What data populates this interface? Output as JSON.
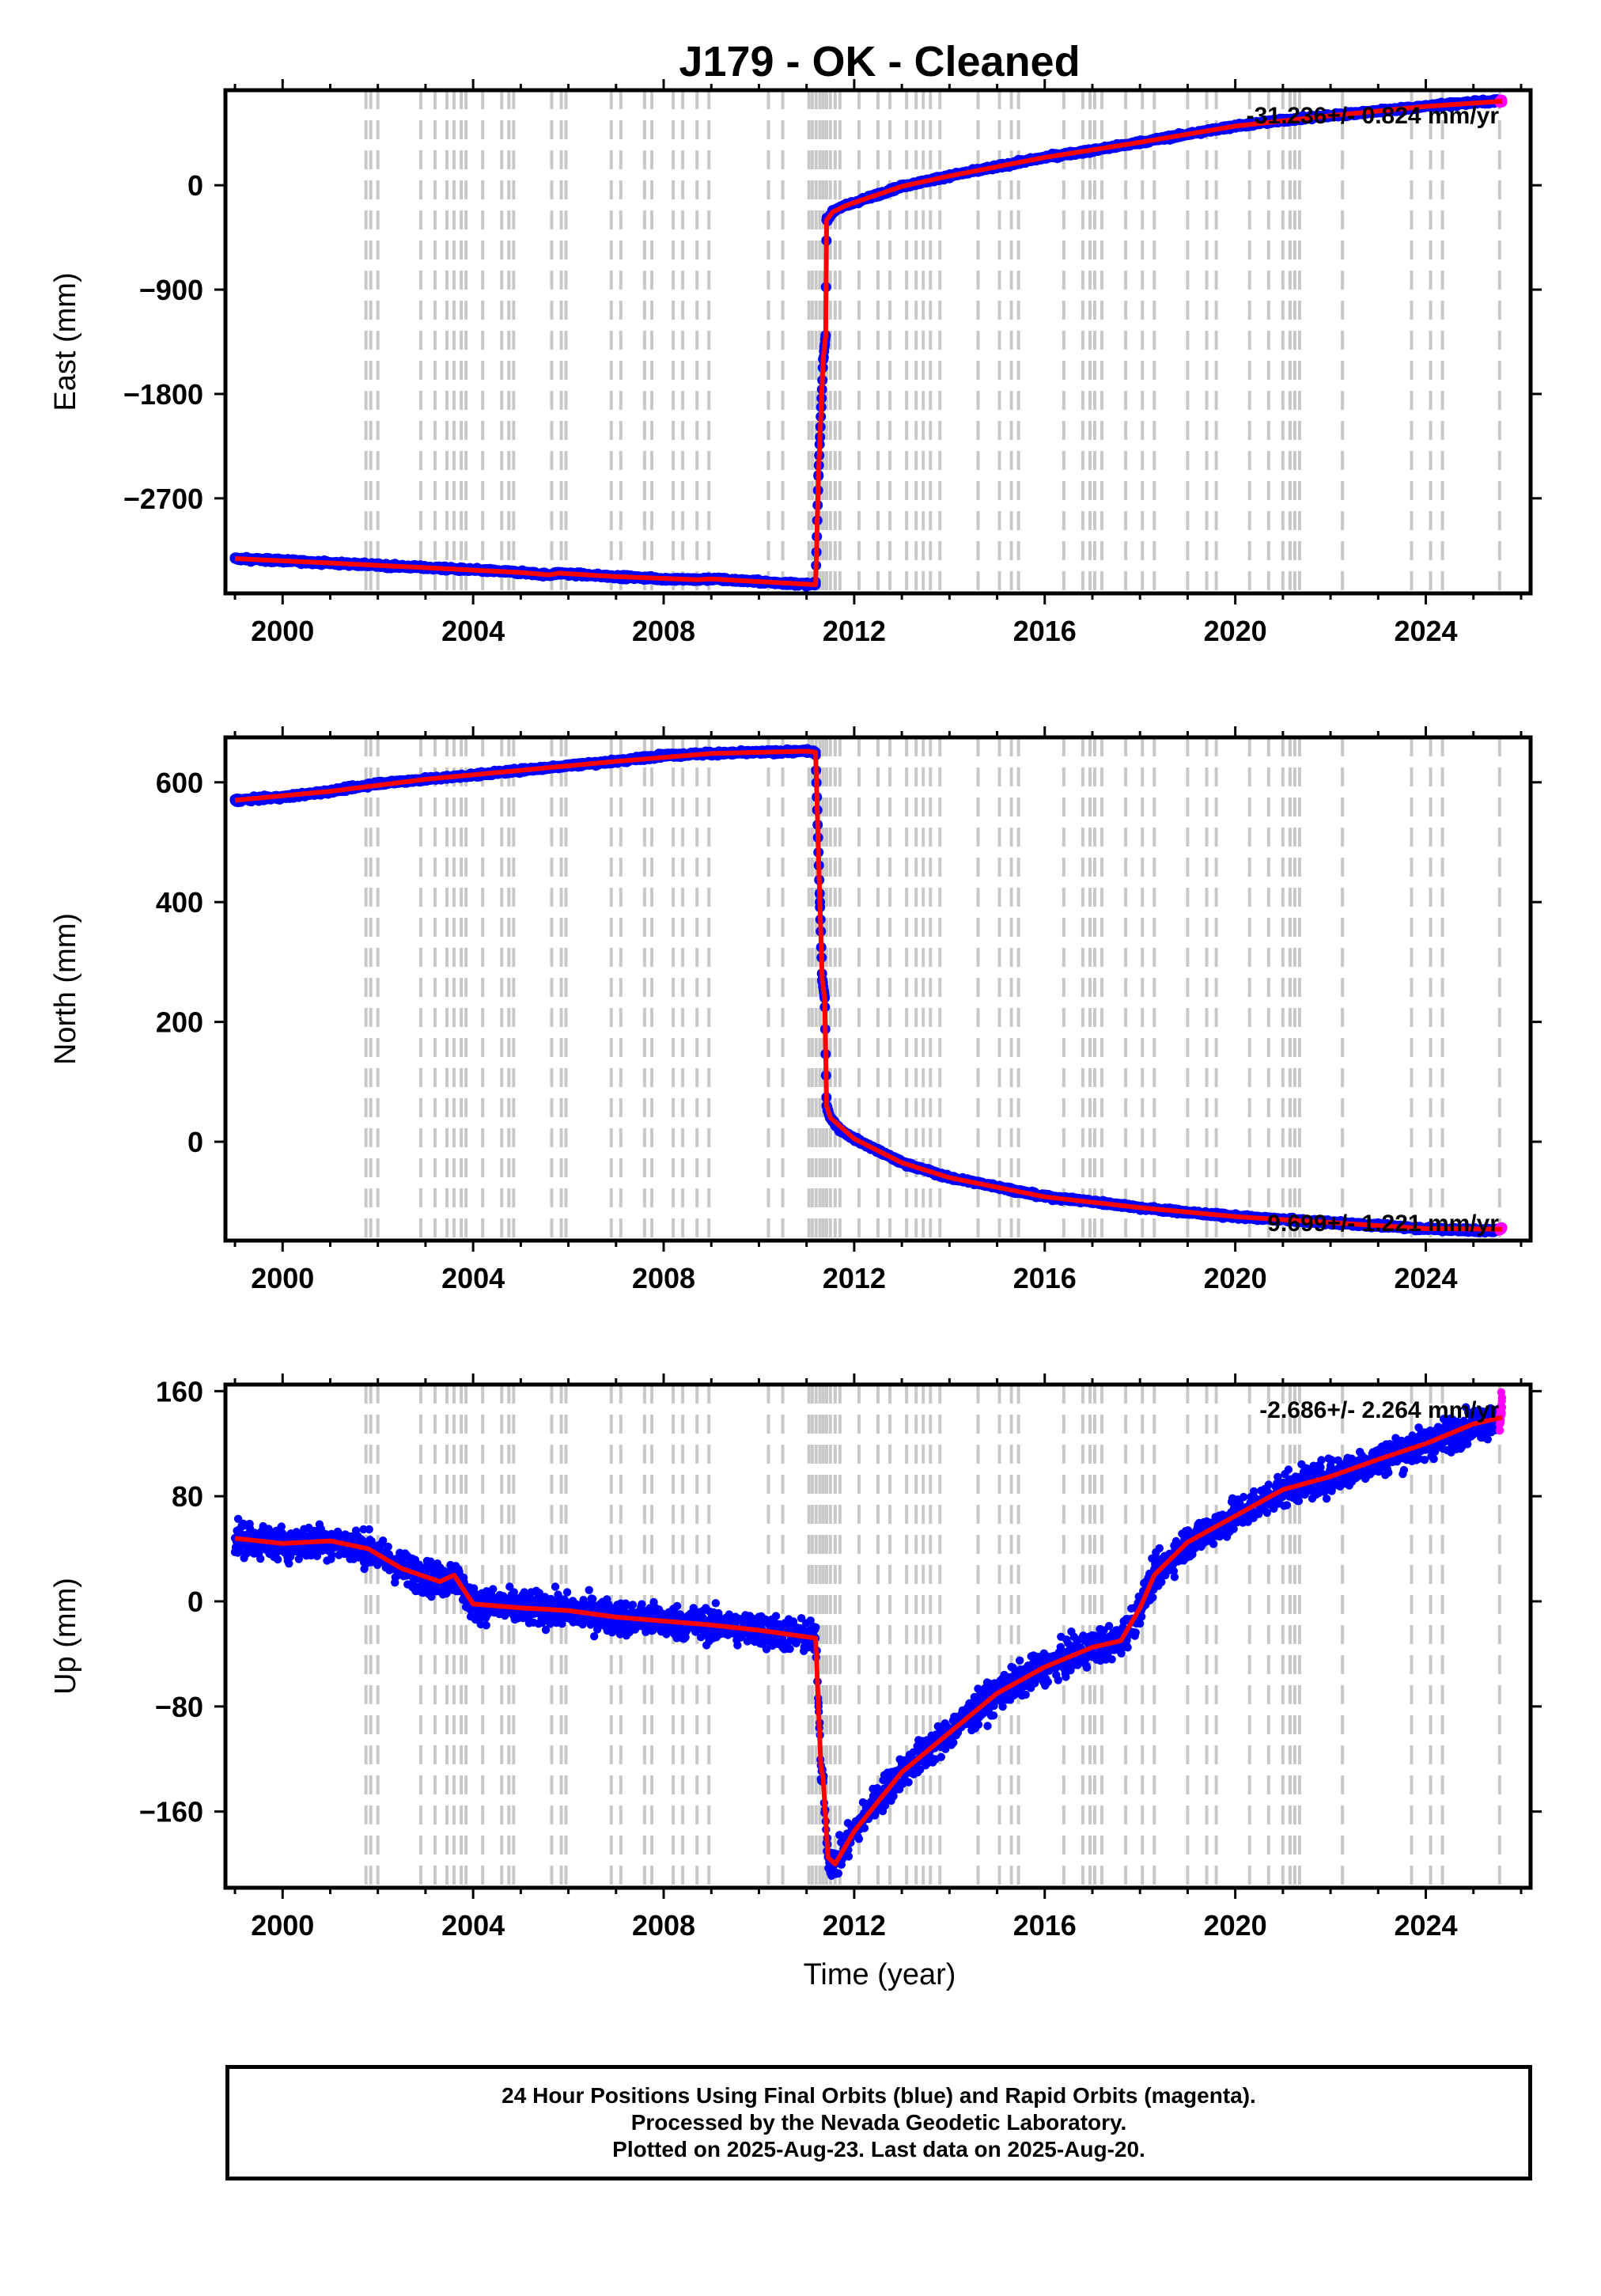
{
  "figure": {
    "title": "J179  - OK - Cleaned",
    "xlabel": "Time (year)",
    "colors": {
      "final": "#0000ff",
      "rapid": "#ff00ff",
      "model": "#ff0000",
      "event_lines": "#c8c8c8",
      "frame": "#000000"
    }
  },
  "footer": {
    "lines": [
      "24 Hour Positions Using Final Orbits (blue) and Rapid Orbits (magenta).",
      "Processed by the Nevada Geodetic Laboratory.",
      "Plotted on 2025-Aug-23. Last data on 2025-Aug-20."
    ]
  },
  "chart_data": [
    {
      "type": "scatter",
      "ylabel": "East (mm)",
      "annotation": "-31.236+/- 0.824 mm/yr",
      "xlim": [
        1998.8,
        2026.2
      ],
      "ylim": [
        -3520,
        820
      ],
      "xticks": [
        2000,
        2004,
        2008,
        2012,
        2016,
        2020,
        2024
      ],
      "yticks": [
        0,
        -900,
        -1800,
        -2700
      ],
      "grid": false,
      "show_xticklabels": true,
      "series": [
        {
          "role": "final",
          "color": "#0000ff",
          "x": [
            1999.0,
            2000.0,
            2001.0,
            2002.0,
            2003.0,
            2004.0,
            2005.0,
            2005.6,
            2005.8,
            2006.5,
            2007.0,
            2008.0,
            2008.7,
            2009.0,
            2010.0,
            2011.19,
            2011.25,
            2011.35,
            2011.4,
            2011.42,
            2011.55,
            2011.65,
            2011.8,
            2012.0,
            2012.5,
            2013.0,
            2014.0,
            2015.0,
            2016.0,
            2017.0,
            2018.0,
            2019.0,
            2020.0,
            2021.0,
            2022.0,
            2023.0,
            2024.0,
            2025.0,
            2025.5
          ],
          "y": [
            -3220,
            -3238,
            -3258,
            -3278,
            -3298,
            -3318,
            -3340,
            -3360,
            -3345,
            -3365,
            -3375,
            -3395,
            -3402,
            -3395,
            -3420,
            -3445,
            -2500,
            -1500,
            -1300,
            -300,
            -230,
            -200,
            -180,
            -150,
            -80,
            -10,
            80,
            160,
            240,
            300,
            370,
            440,
            510,
            560,
            600,
            640,
            680,
            715,
            725
          ]
        },
        {
          "role": "rapid",
          "color": "#ff00ff",
          "x": [
            2025.55,
            2025.6
          ],
          "y": [
            722,
            726
          ]
        }
      ],
      "model": {
        "color": "#ff0000",
        "x": [
          1999.0,
          2001.0,
          2003.0,
          2005.0,
          2005.6,
          2005.8,
          2007.0,
          2008.7,
          2009.0,
          2011.19,
          2011.25,
          2011.35,
          2011.4,
          2011.42,
          2011.55,
          2011.8,
          2012.0,
          2013.0,
          2014.0,
          2016.0,
          2018.0,
          2020.0,
          2022.0,
          2024.0,
          2025.6
        ],
        "y": [
          -3220,
          -3258,
          -3298,
          -3340,
          -3360,
          -3345,
          -3375,
          -3402,
          -3395,
          -3445,
          -2500,
          -1500,
          -1300,
          -300,
          -230,
          -180,
          -150,
          -10,
          80,
          240,
          370,
          510,
          600,
          680,
          725
        ]
      },
      "event_lines": [
        2001.75,
        2001.85,
        2002.0,
        2002.9,
        2003.2,
        2003.45,
        2003.6,
        2003.75,
        2003.85,
        2004.2,
        2004.6,
        2004.75,
        2004.85,
        2005.65,
        2005.85,
        2005.95,
        2006.9,
        2007.1,
        2007.6,
        2007.75,
        2008.2,
        2008.4,
        2008.7,
        2008.95,
        2010.2,
        2010.5,
        2011.05,
        2011.12,
        2011.2,
        2011.28,
        2011.35,
        2011.42,
        2011.5,
        2011.6,
        2011.7,
        2012.1,
        2012.5,
        2012.75,
        2013.1,
        2013.3,
        2013.45,
        2013.6,
        2013.8,
        2014.6,
        2015.05,
        2015.3,
        2015.45,
        2016.4,
        2016.8,
        2016.95,
        2017.05,
        2017.2,
        2017.7,
        2018.05,
        2018.3,
        2019.0,
        2019.4,
        2019.6,
        2020.3,
        2020.7,
        2021.0,
        2021.15,
        2021.25,
        2021.35,
        2022.25,
        2023.7,
        2024.1,
        2024.35,
        2025.55
      ]
    },
    {
      "type": "scatter",
      "ylabel": "North (mm)",
      "annotation": "9.699+/- 1.221 mm/yr",
      "xlim": [
        1998.8,
        2026.2
      ],
      "ylim": [
        -165,
        675
      ],
      "xticks": [
        2000,
        2004,
        2008,
        2012,
        2016,
        2020,
        2024
      ],
      "yticks": [
        600,
        400,
        200,
        0
      ],
      "grid": false,
      "show_xticklabels": true,
      "series": [
        {
          "role": "final",
          "color": "#0000ff",
          "x": [
            1999.0,
            2000.0,
            2001.0,
            2002.0,
            2003.0,
            2004.0,
            2005.0,
            2006.0,
            2007.0,
            2008.0,
            2009.0,
            2010.0,
            2011.0,
            2011.19,
            2011.28,
            2011.33,
            2011.38,
            2011.42,
            2011.5,
            2011.7,
            2012.0,
            2012.5,
            2013.0,
            2014.0,
            2015.0,
            2016.0,
            2017.0,
            2018.0,
            2019.0,
            2020.0,
            2021.0,
            2022.0,
            2023.0,
            2024.0,
            2025.0,
            2025.5
          ],
          "y": [
            570,
            575,
            585,
            598,
            605,
            612,
            620,
            628,
            635,
            645,
            648,
            650,
            652,
            650,
            400,
            270,
            240,
            60,
            40,
            20,
            5,
            -15,
            -35,
            -60,
            -75,
            -92,
            -100,
            -110,
            -118,
            -125,
            -130,
            -135,
            -140,
            -145,
            -148,
            -148
          ]
        },
        {
          "role": "rapid",
          "color": "#ff00ff",
          "x": [
            2025.55,
            2025.6
          ],
          "y": [
            -146,
            -143
          ]
        }
      ],
      "model": {
        "color": "#ff0000",
        "x": [
          1999.0,
          2001.0,
          2003.0,
          2005.0,
          2007.0,
          2009.0,
          2011.0,
          2011.19,
          2011.28,
          2011.33,
          2011.38,
          2011.42,
          2011.5,
          2012.0,
          2013.0,
          2014.0,
          2016.0,
          2018.0,
          2020.0,
          2022.0,
          2024.0,
          2025.6
        ],
        "y": [
          570,
          585,
          605,
          620,
          635,
          648,
          652,
          650,
          400,
          270,
          240,
          60,
          40,
          5,
          -35,
          -60,
          -92,
          -110,
          -125,
          -135,
          -145,
          -146
        ]
      },
      "event_lines": [
        2001.75,
        2001.85,
        2002.0,
        2002.9,
        2003.2,
        2003.45,
        2003.6,
        2003.75,
        2003.85,
        2004.2,
        2004.6,
        2004.75,
        2004.85,
        2005.65,
        2005.85,
        2005.95,
        2006.9,
        2007.1,
        2007.6,
        2007.75,
        2008.2,
        2008.4,
        2008.7,
        2008.95,
        2010.2,
        2010.5,
        2011.05,
        2011.12,
        2011.2,
        2011.28,
        2011.35,
        2011.42,
        2011.5,
        2011.6,
        2011.7,
        2012.1,
        2012.5,
        2012.75,
        2013.1,
        2013.3,
        2013.45,
        2013.6,
        2013.8,
        2014.6,
        2015.05,
        2015.3,
        2015.45,
        2016.4,
        2016.8,
        2016.95,
        2017.05,
        2017.2,
        2017.7,
        2018.05,
        2018.3,
        2019.0,
        2019.4,
        2019.6,
        2020.3,
        2020.7,
        2021.0,
        2021.15,
        2021.25,
        2021.35,
        2022.25,
        2023.7,
        2024.1,
        2024.35,
        2025.55
      ]
    },
    {
      "type": "scatter",
      "ylabel": "Up (mm)",
      "annotation": "-2.686+/- 2.264 mm/yr",
      "xlim": [
        1998.8,
        2026.2
      ],
      "ylim": [
        -218,
        165
      ],
      "xticks": [
        2000,
        2004,
        2008,
        2012,
        2016,
        2020,
        2024
      ],
      "yticks": [
        160,
        80,
        0,
        -80,
        -160
      ],
      "grid": false,
      "show_xticklabels": true,
      "scatter_noise": 16,
      "series": [
        {
          "role": "final",
          "color": "#0000ff",
          "x": [
            1999.0,
            2000.0,
            2001.0,
            2001.8,
            2002.5,
            2003.3,
            2003.6,
            2004.0,
            2005.0,
            2006.0,
            2007.0,
            2008.0,
            2009.0,
            2010.0,
            2011.19,
            2011.25,
            2011.3,
            2011.35,
            2011.45,
            2011.6,
            2012.0,
            2012.5,
            2013.0,
            2014.0,
            2015.0,
            2016.0,
            2017.0,
            2017.6,
            2018.0,
            2018.3,
            2019.0,
            2020.0,
            2021.0,
            2022.0,
            2023.0,
            2024.0,
            2025.0,
            2025.5
          ],
          "y": [
            48,
            44,
            46,
            40,
            25,
            15,
            20,
            -2,
            -5,
            -7,
            -12,
            -15,
            -18,
            -22,
            -28,
            -80,
            -125,
            -135,
            -195,
            -200,
            -175,
            -150,
            -130,
            -100,
            -70,
            -50,
            -35,
            -30,
            -5,
            20,
            45,
            65,
            85,
            95,
            108,
            120,
            135,
            140
          ]
        },
        {
          "role": "rapid",
          "color": "#ff00ff",
          "x": [
            2025.55,
            2025.58,
            2025.6
          ],
          "y": [
            130,
            145,
            155
          ]
        }
      ],
      "model": {
        "color": "#ff0000",
        "x": [
          1999.0,
          2000.0,
          2001.0,
          2001.8,
          2002.5,
          2003.3,
          2003.6,
          2004.0,
          2005.0,
          2006.0,
          2007.0,
          2008.0,
          2009.0,
          2010.0,
          2011.19,
          2011.25,
          2011.3,
          2011.35,
          2011.45,
          2011.6,
          2012.0,
          2013.0,
          2014.0,
          2015.0,
          2016.0,
          2017.0,
          2017.6,
          2018.0,
          2018.3,
          2019.0,
          2020.0,
          2021.0,
          2022.0,
          2023.0,
          2024.0,
          2025.0,
          2025.6
        ],
        "y": [
          48,
          44,
          46,
          40,
          25,
          15,
          20,
          -2,
          -5,
          -7,
          -12,
          -15,
          -18,
          -22,
          -28,
          -80,
          -125,
          -135,
          -195,
          -200,
          -175,
          -130,
          -100,
          -70,
          -50,
          -35,
          -30,
          -5,
          20,
          45,
          65,
          85,
          95,
          108,
          120,
          135,
          140
        ]
      },
      "event_lines": [
        2001.75,
        2001.85,
        2002.0,
        2002.9,
        2003.2,
        2003.45,
        2003.6,
        2003.75,
        2003.85,
        2004.2,
        2004.6,
        2004.75,
        2004.85,
        2005.65,
        2005.85,
        2005.95,
        2006.9,
        2007.1,
        2007.6,
        2007.75,
        2008.2,
        2008.4,
        2008.7,
        2008.95,
        2010.2,
        2010.5,
        2011.05,
        2011.12,
        2011.2,
        2011.28,
        2011.35,
        2011.42,
        2011.5,
        2011.6,
        2011.7,
        2012.1,
        2012.5,
        2012.75,
        2013.1,
        2013.3,
        2013.45,
        2013.6,
        2013.8,
        2014.6,
        2015.05,
        2015.3,
        2015.45,
        2016.4,
        2016.8,
        2016.95,
        2017.05,
        2017.2,
        2017.7,
        2018.05,
        2018.3,
        2019.0,
        2019.4,
        2019.6,
        2020.3,
        2020.7,
        2021.0,
        2021.15,
        2021.25,
        2021.35,
        2022.25,
        2023.7,
        2024.1,
        2024.35,
        2025.55
      ]
    }
  ]
}
